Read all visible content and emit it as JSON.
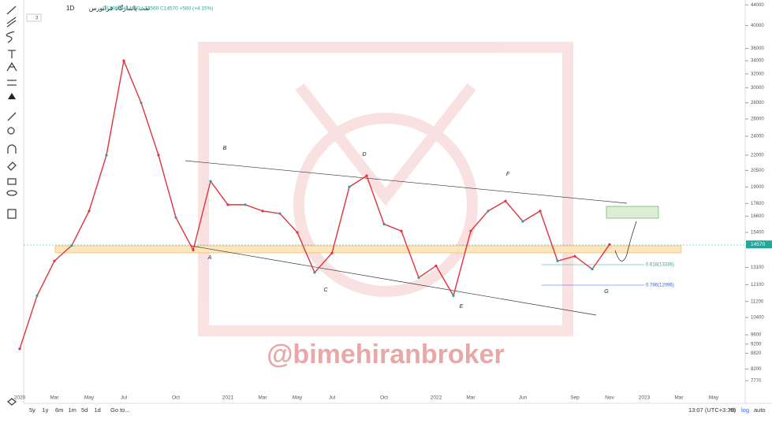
{
  "header": {
    "symbol": "نفت پاسارگاد",
    "interval": "1D",
    "exchange": "فرابورس",
    "ohlc": "O13980 H14660 L13560 C14570 +580 (+4.15%)",
    "indicator_count": "3"
  },
  "watermark": "@bimehiranbroker",
  "annotations": {
    "waves": [
      "A",
      "B",
      "C",
      "D",
      "E",
      "F",
      "G"
    ],
    "fib_618": "0.618(13336)",
    "fib_786": "0.786(12096)"
  },
  "bottom_bar": {
    "ranges": [
      "5y",
      "1y",
      "6m",
      "1m",
      "5d",
      "1d"
    ],
    "goto": "Go to...",
    "time": "13:07 (UTC+3:30)",
    "percent": "%",
    "log": "log",
    "auto": "auto"
  },
  "chart_data": {
    "type": "line",
    "log_scale": true,
    "color": "#e0333c",
    "categories": [
      "2020",
      null,
      "Mar",
      null,
      "May",
      null,
      "Jul",
      null,
      null,
      "Oct",
      null,
      null,
      "2021",
      null,
      "Mar",
      null,
      "May",
      null,
      "Jul",
      null,
      null,
      "Oct",
      null,
      null,
      "2022",
      null,
      "Mar",
      null,
      null,
      "Jun",
      null,
      null,
      "Sep",
      null,
      "Nov",
      null,
      "2023",
      null,
      "Mar",
      null,
      "May"
    ],
    "values": [
      9000,
      11500,
      13500,
      14500,
      17000,
      22000,
      34000,
      28000,
      22000,
      16500,
      14200,
      19500,
      17500,
      17500,
      17000,
      16800,
      15400,
      12800,
      14000,
      19000,
      20000,
      16000,
      15500,
      12500,
      13200,
      11500,
      15500,
      17000,
      17800,
      16200,
      17000,
      13500,
      13800,
      13000,
      14570,
      null,
      null,
      null,
      null,
      null,
      null
    ],
    "last_price": 14570,
    "ylim": [
      7000,
      45000
    ],
    "yticks": [
      44000,
      40000,
      36000,
      34000,
      32000,
      30000,
      28000,
      26000,
      24000,
      22000,
      20500,
      19000,
      17600,
      16600,
      15400,
      13100,
      12100,
      11200,
      10400,
      9600,
      9200,
      8820,
      8200,
      7770
    ]
  }
}
